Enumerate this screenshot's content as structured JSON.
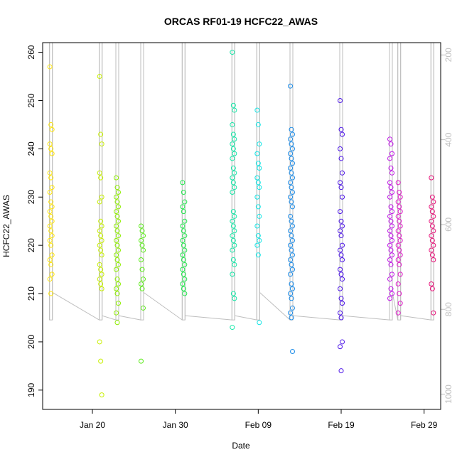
{
  "chart_data": {
    "type": "scatter",
    "title": "ORCAS RF01-19 HCFC22_AWAS",
    "xlabel": "Date",
    "ylabel": "HCFC22_AWAS",
    "xlim": [
      "2016-01-14",
      "2016-03-02"
    ],
    "ylim": [
      186,
      262
    ],
    "y2lim": [
      1036,
      171
    ],
    "x_ticks": [
      {
        "date": "2016-01-20",
        "label": "Jan 20"
      },
      {
        "date": "2016-01-30",
        "label": "Jan 30"
      },
      {
        "date": "2016-02-09",
        "label": "Feb 09"
      },
      {
        "date": "2016-02-19",
        "label": "Feb 19"
      },
      {
        "date": "2016-02-29",
        "label": "Feb 29"
      }
    ],
    "y_ticks": [
      190,
      200,
      210,
      220,
      230,
      240,
      250,
      260
    ],
    "y2_ticks": [
      200,
      400,
      600,
      800,
      1000
    ],
    "grid": false,
    "flights": [
      {
        "date": "2016-01-15",
        "color": "#FFE400",
        "values": [
          257,
          245,
          244,
          241,
          240,
          239,
          235,
          234,
          232,
          231,
          229,
          228,
          227,
          226,
          225,
          224,
          223,
          222,
          221,
          220,
          218,
          217,
          216,
          214,
          213,
          210
        ]
      },
      {
        "date": "2016-01-21",
        "color": "#C8F000",
        "values": [
          255,
          243,
          241,
          235,
          234,
          230,
          229,
          225,
          224,
          223,
          222,
          221,
          220,
          219,
          218,
          216,
          215,
          214,
          213,
          212,
          211,
          200,
          196,
          189
        ]
      },
      {
        "date": "2016-01-23",
        "color": "#8FEF00",
        "values": [
          234,
          232,
          231,
          230,
          229,
          228,
          227,
          226,
          225,
          224,
          223,
          222,
          221,
          220,
          219,
          218,
          217,
          216,
          215,
          213,
          212,
          211,
          210,
          208,
          206,
          204
        ]
      },
      {
        "date": "2016-01-26",
        "color": "#5CEB1A",
        "values": [
          224,
          223,
          222,
          221,
          220,
          219,
          217,
          215,
          213,
          212,
          211,
          207,
          196
        ]
      },
      {
        "date": "2016-01-31",
        "color": "#22E84D",
        "values": [
          233,
          231,
          229,
          228,
          227,
          225,
          224,
          223,
          222,
          221,
          220,
          219,
          218,
          217,
          216,
          215,
          214,
          213,
          212,
          211,
          210
        ]
      },
      {
        "date": "2016-02-06",
        "color": "#14E8A8",
        "values": [
          260,
          249,
          248,
          245,
          243,
          242,
          241,
          240,
          239,
          238,
          236,
          235,
          234,
          233,
          232,
          231,
          227,
          226,
          225,
          224,
          223,
          222,
          221,
          220,
          219,
          217,
          216,
          214,
          210,
          209,
          203
        ]
      },
      {
        "date": "2016-02-09",
        "color": "#14E6E6",
        "values": [
          248,
          245,
          241,
          239,
          237,
          236,
          234,
          233,
          232,
          230,
          228,
          226,
          224,
          222,
          221,
          220,
          218,
          204
        ]
      },
      {
        "date": "2016-02-13",
        "color": "#1C8CE8",
        "values": [
          253,
          244,
          243,
          242,
          241,
          240,
          239,
          238,
          237,
          236,
          235,
          234,
          233,
          232,
          231,
          230,
          229,
          228,
          226,
          225,
          224,
          223,
          222,
          221,
          220,
          219,
          218,
          217,
          216,
          215,
          214,
          212,
          211,
          210,
          209,
          207,
          206,
          205,
          198
        ]
      },
      {
        "date": "2016-02-19",
        "color": "#4C14E8",
        "values": [
          250,
          244,
          243,
          240,
          238,
          235,
          233,
          232,
          230,
          227,
          225,
          224,
          223,
          222,
          220,
          219,
          218,
          217,
          215,
          214,
          213,
          211,
          209,
          208,
          206,
          205,
          200,
          199,
          194
        ]
      },
      {
        "date": "2016-02-25",
        "color": "#C014E8",
        "values": [
          242,
          241,
          239,
          238,
          236,
          235,
          233,
          232,
          231,
          230,
          228,
          227,
          226,
          225,
          224,
          223,
          222,
          221,
          220,
          219,
          218,
          217,
          216,
          214,
          213,
          211,
          210,
          209
        ]
      },
      {
        "date": "2016-02-26",
        "color": "#E014C8",
        "values": [
          233,
          231,
          230,
          229,
          228,
          227,
          226,
          225,
          224,
          223,
          222,
          221,
          220,
          219,
          218,
          217,
          216,
          214,
          212,
          210,
          208,
          206
        ]
      },
      {
        "date": "2016-03-01",
        "color": "#E8147A",
        "values": [
          234,
          230,
          229,
          228,
          227,
          226,
          225,
          224,
          223,
          222,
          221,
          220,
          219,
          218,
          217,
          212,
          211,
          206
        ]
      }
    ],
    "pressure_track_color": "#BEBEBE"
  }
}
